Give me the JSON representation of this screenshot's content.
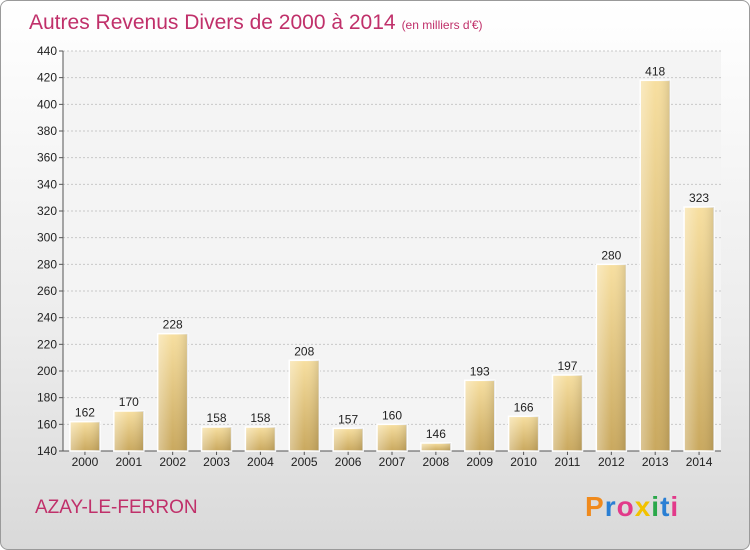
{
  "title": "Autres Revenus Divers de 2000 à 2014",
  "subtitle": "(en milliers d'€)",
  "place": "AZAY-LE-FERRON",
  "logo": {
    "letters": [
      "P",
      "r",
      "o",
      "x",
      "i",
      "t",
      "i"
    ],
    "colors": [
      "#f08a1c",
      "#2a7fd4",
      "#e23a8a",
      "#f2c200",
      "#2aa84a",
      "#2a7fd4",
      "#e23a8a"
    ]
  },
  "chart_data": {
    "type": "bar",
    "categories": [
      "2000",
      "2001",
      "2002",
      "2003",
      "2004",
      "2005",
      "2006",
      "2007",
      "2008",
      "2009",
      "2010",
      "2011",
      "2012",
      "2013",
      "2014"
    ],
    "values": [
      162,
      170,
      228,
      158,
      158,
      208,
      157,
      160,
      146,
      193,
      166,
      197,
      280,
      418,
      323
    ],
    "ylim": [
      140,
      440
    ],
    "yticks": [
      140,
      160,
      180,
      200,
      220,
      240,
      260,
      280,
      300,
      320,
      340,
      360,
      380,
      400,
      420,
      440
    ],
    "grid": true,
    "bar_color": "#e6c87a"
  }
}
